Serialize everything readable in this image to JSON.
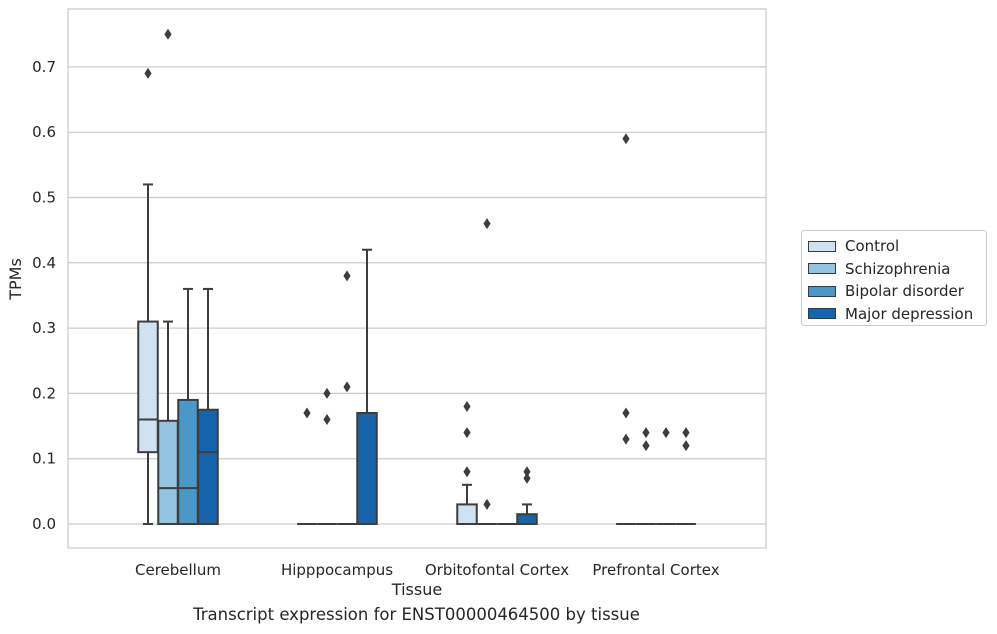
{
  "chart_data": {
    "type": "box",
    "xlabel": "Tissue",
    "ylabel": "TPMs",
    "ylim": [
      -0.037,
      0.79
    ],
    "yticks": [
      0.0,
      0.1,
      0.2,
      0.3,
      0.4,
      0.5,
      0.6,
      0.7
    ],
    "ytick_labels": [
      "0.0",
      "0.1",
      "0.2",
      "0.3",
      "0.4",
      "0.5",
      "0.6",
      "0.7"
    ],
    "grid": "horizontal",
    "legend_position": "right",
    "categories": [
      "Cerebellum",
      "Hipppocampus",
      "Orbitofontal Cortex",
      "Prefrontal Cortex"
    ],
    "series": [
      {
        "name": "Control",
        "color": "#d0e1f2",
        "boxes": [
          {
            "q1": 0.11,
            "median": 0.16,
            "q3": 0.31,
            "whisker_low": 0.0,
            "whisker_high": 0.52,
            "outliers": [
              0.69
            ]
          },
          {
            "q1": 0.0,
            "median": 0.0,
            "q3": 0.0,
            "whisker_low": 0.0,
            "whisker_high": 0.0,
            "outliers": [
              0.17
            ]
          },
          {
            "q1": 0.0,
            "median": 0.0,
            "q3": 0.03,
            "whisker_low": 0.0,
            "whisker_high": 0.06,
            "outliers": [
              0.08,
              0.14,
              0.18
            ]
          },
          {
            "q1": 0.0,
            "median": 0.0,
            "q3": 0.0,
            "whisker_low": 0.0,
            "whisker_high": 0.0,
            "outliers": [
              0.13,
              0.17,
              0.59
            ]
          }
        ]
      },
      {
        "name": "Schizophrenia",
        "color": "#94c4df",
        "boxes": [
          {
            "q1": 0.0,
            "median": 0.055,
            "q3": 0.158,
            "whisker_low": 0.0,
            "whisker_high": 0.31,
            "outliers": [
              0.75
            ]
          },
          {
            "q1": 0.0,
            "median": 0.0,
            "q3": 0.0,
            "whisker_low": 0.0,
            "whisker_high": 0.0,
            "outliers": [
              0.16,
              0.2
            ]
          },
          {
            "q1": 0.0,
            "median": 0.0,
            "q3": 0.0,
            "whisker_low": 0.0,
            "whisker_high": 0.0,
            "outliers": [
              0.03,
              0.46
            ]
          },
          {
            "q1": 0.0,
            "median": 0.0,
            "q3": 0.0,
            "whisker_low": 0.0,
            "whisker_high": 0.0,
            "outliers": [
              0.12,
              0.14
            ]
          }
        ]
      },
      {
        "name": "Bipolar disorder",
        "color": "#4a98c9",
        "boxes": [
          {
            "q1": 0.0,
            "median": 0.055,
            "q3": 0.19,
            "whisker_low": 0.0,
            "whisker_high": 0.36,
            "outliers": []
          },
          {
            "q1": 0.0,
            "median": 0.0,
            "q3": 0.0,
            "whisker_low": 0.0,
            "whisker_high": 0.0,
            "outliers": [
              0.21,
              0.38
            ]
          },
          {
            "q1": 0.0,
            "median": 0.0,
            "q3": 0.0,
            "whisker_low": 0.0,
            "whisker_high": 0.0,
            "outliers": []
          },
          {
            "q1": 0.0,
            "median": 0.0,
            "q3": 0.0,
            "whisker_low": 0.0,
            "whisker_high": 0.0,
            "outliers": [
              0.14
            ]
          }
        ]
      },
      {
        "name": "Major depression",
        "color": "#1764ab",
        "boxes": [
          {
            "q1": 0.0,
            "median": 0.11,
            "q3": 0.175,
            "whisker_low": 0.0,
            "whisker_high": 0.36,
            "outliers": []
          },
          {
            "q1": 0.0,
            "median": 0.0,
            "q3": 0.17,
            "whisker_low": 0.0,
            "whisker_high": 0.42,
            "outliers": []
          },
          {
            "q1": 0.0,
            "median": 0.0,
            "q3": 0.015,
            "whisker_low": 0.0,
            "whisker_high": 0.03,
            "outliers": [
              0.07,
              0.08
            ]
          },
          {
            "q1": 0.0,
            "median": 0.0,
            "q3": 0.0,
            "whisker_low": 0.0,
            "whisker_high": 0.0,
            "outliers": [
              0.12,
              0.14
            ]
          }
        ]
      }
    ]
  },
  "caption": "Transcript expression for ENST00000464500 by tissue"
}
